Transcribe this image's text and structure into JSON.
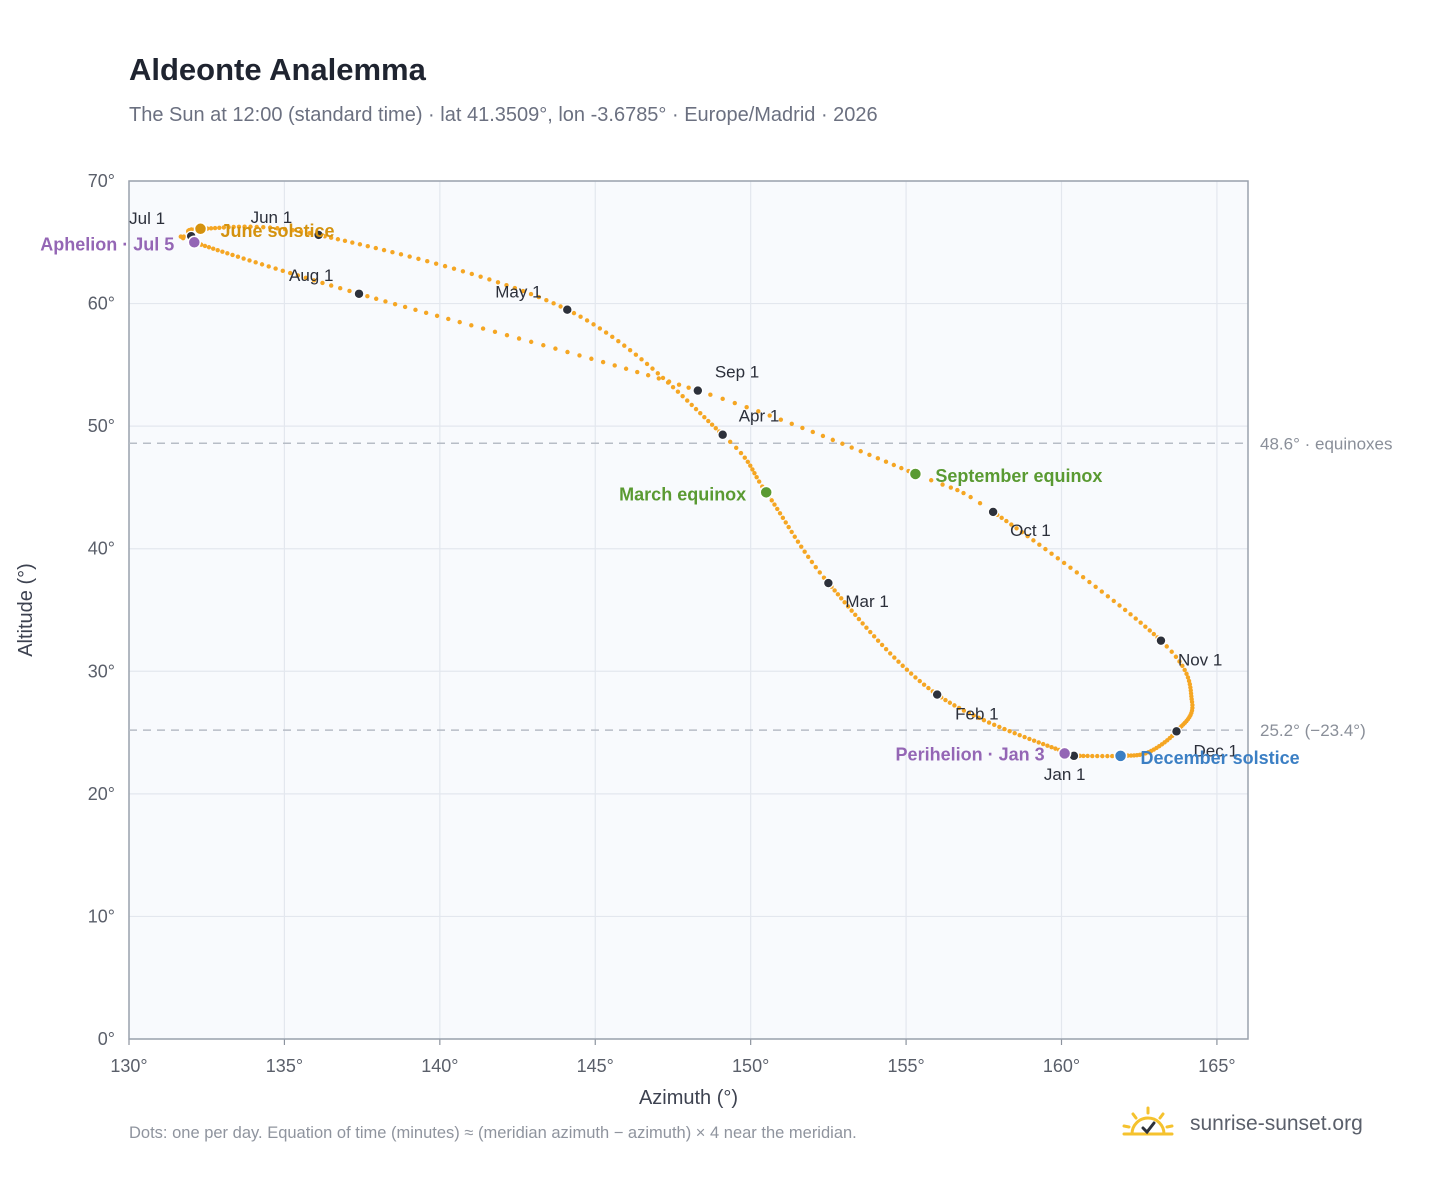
{
  "title": "Aldeonte Analemma",
  "subtitle": "The Sun at 12:00 (standard time) · lat 41.3509°, lon -3.6785° · Europe/Madrid · 2026",
  "footnote": "Dots: one per day. Equation of time (minutes) ≈ (meridian azimuth − azimuth) × 4 near the meridian.",
  "brand": {
    "name": "sunrise-sunset.org",
    "logo_icon": "sun-check-icon"
  },
  "colors": {
    "curve": "#f5a623",
    "month_marker": "#2d313b",
    "solstice_june": "#d4920f",
    "solstice_december": "#3b7fc4",
    "equinox": "#5a9a32",
    "apsis": "#9466b5",
    "plot_background": "#f8fafd",
    "grid": "#e3e7ee",
    "reference_line": "#b7bdc6"
  },
  "chart_data": {
    "type": "scatter",
    "xlabel": "Azimuth (°)",
    "ylabel": "Altitude (°)",
    "xlim": [
      130,
      166
    ],
    "ylim": [
      0,
      70
    ],
    "x_ticks": [
      130,
      135,
      140,
      145,
      150,
      155,
      160,
      165
    ],
    "x_tick_labels": [
      "130°",
      "135°",
      "140°",
      "145°",
      "150°",
      "155°",
      "160°",
      "165°"
    ],
    "y_ticks": [
      0,
      10,
      20,
      30,
      40,
      50,
      60,
      70
    ],
    "y_tick_labels": [
      "0°",
      "10°",
      "20°",
      "30°",
      "40°",
      "50°",
      "60°",
      "70°"
    ],
    "grid": true,
    "series": [
      {
        "key": "daily",
        "points_note": "one dot per day",
        "anchors": [
          [
            0,
            160.4,
            23.1
          ],
          [
            31,
            156.0,
            28.1
          ],
          [
            59,
            152.5,
            37.2
          ],
          [
            78,
            150.5,
            44.6
          ],
          [
            90,
            149.1,
            49.3
          ],
          [
            120,
            144.1,
            59.5
          ],
          [
            151,
            136.1,
            65.6
          ],
          [
            171,
            132.3,
            66.1
          ],
          [
            181,
            132.0,
            65.5
          ],
          [
            186,
            132.1,
            65.0
          ],
          [
            212,
            137.4,
            60.8
          ],
          [
            243,
            148.3,
            52.9
          ],
          [
            265,
            155.3,
            46.1
          ],
          [
            273,
            157.8,
            43.0
          ],
          [
            304,
            163.2,
            32.5
          ],
          [
            320,
            164.2,
            27.5
          ],
          [
            334,
            163.7,
            25.1
          ],
          [
            345,
            162.8,
            23.4
          ],
          [
            354,
            161.9,
            23.1
          ],
          [
            364,
            160.5,
            23.1
          ]
        ]
      }
    ],
    "month_markers": [
      {
        "label": "Jan 1",
        "x": 160.4,
        "y": 23.1
      },
      {
        "label": "Feb 1",
        "x": 156.0,
        "y": 28.1
      },
      {
        "label": "Mar 1",
        "x": 152.5,
        "y": 37.2
      },
      {
        "label": "Apr 1",
        "x": 149.1,
        "y": 49.3
      },
      {
        "label": "May 1",
        "x": 144.1,
        "y": 59.5
      },
      {
        "label": "Jun 1",
        "x": 136.1,
        "y": 65.6
      },
      {
        "label": "Jul 1",
        "x": 132.0,
        "y": 65.5
      },
      {
        "label": "Aug 1",
        "x": 137.4,
        "y": 60.8
      },
      {
        "label": "Sep 1",
        "x": 148.3,
        "y": 52.9
      },
      {
        "label": "Oct 1",
        "x": 157.8,
        "y": 43.0
      },
      {
        "label": "Nov 1",
        "x": 163.2,
        "y": 32.5
      },
      {
        "label": "Dec 1",
        "x": 163.7,
        "y": 25.1
      }
    ],
    "events": [
      {
        "label": "June solstice",
        "x": 132.3,
        "y": 66.1,
        "color": "solstice_june"
      },
      {
        "label": "December solstice",
        "x": 161.9,
        "y": 23.1,
        "color": "solstice_december"
      },
      {
        "label": "March equinox",
        "x": 150.5,
        "y": 44.6,
        "color": "equinox"
      },
      {
        "label": "September equinox",
        "x": 155.3,
        "y": 46.1,
        "color": "equinox"
      },
      {
        "label": "Aphelion · Jul 5",
        "x": 132.1,
        "y": 65.0,
        "color": "apsis"
      },
      {
        "label": "Perihelion · Jan 3",
        "x": 160.1,
        "y": 23.3,
        "color": "apsis"
      }
    ],
    "reference_lines": [
      {
        "y": 48.6,
        "label": "48.6° · equinoxes"
      },
      {
        "y": 25.2,
        "label": "25.2° (−23.4°)"
      }
    ]
  }
}
